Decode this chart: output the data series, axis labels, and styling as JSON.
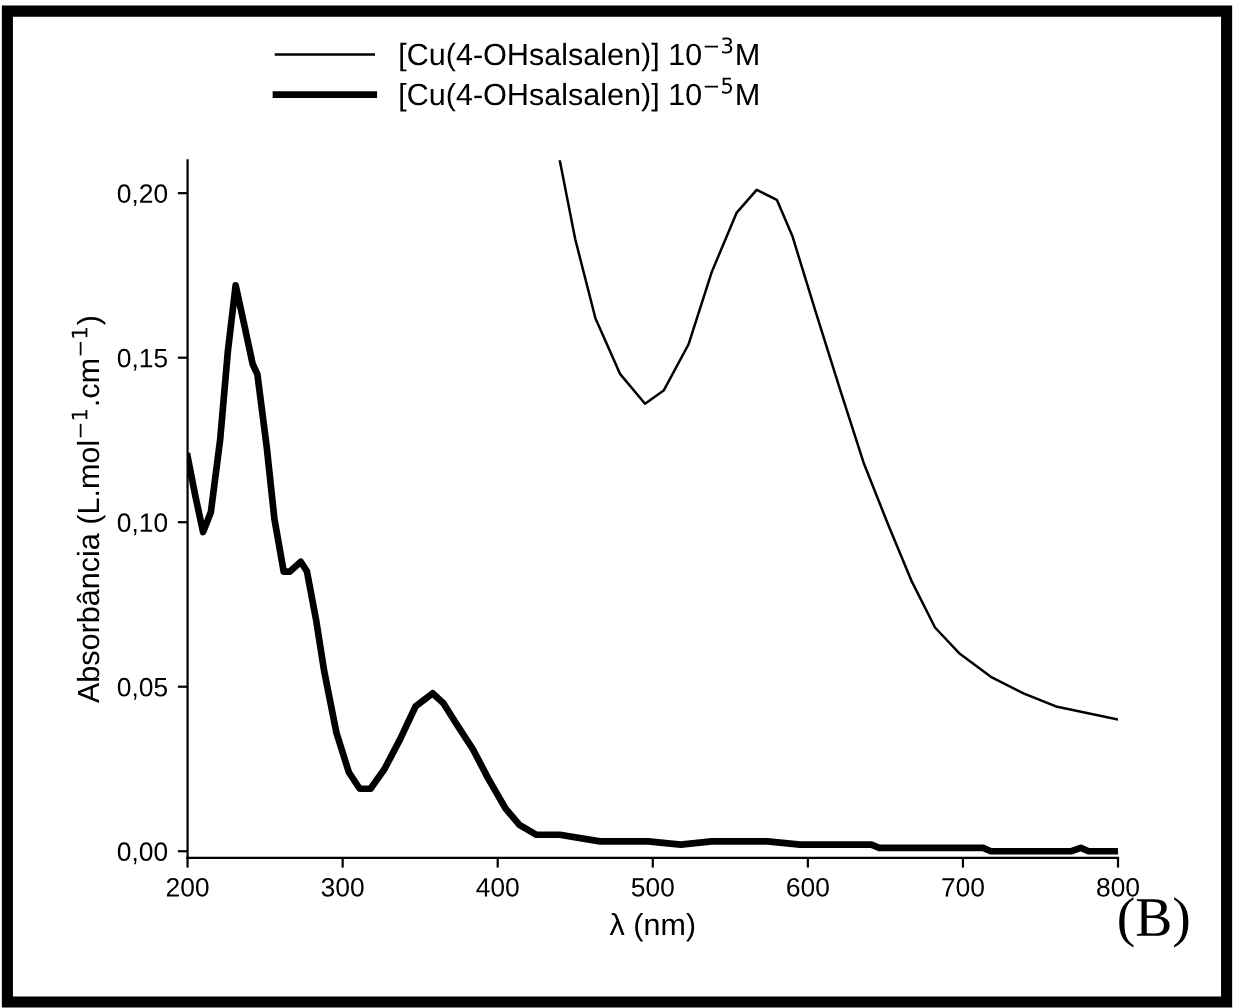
{
  "chart_data": {
    "type": "line",
    "xlabel": "λ (nm)",
    "ylabel": "Absorbância (L.mol$^{−1}$.cm$^{−1}$)",
    "annotations": [
      "(B)"
    ],
    "legend": "top",
    "grid": false,
    "marker": "none",
    "line_style": "solid",
    "xlim": [
      200,
      800
    ],
    "xticks": [
      200,
      300,
      400,
      500,
      600,
      700,
      800
    ],
    "ylim": [
      -0.002,
      0.21
    ],
    "yticks": [
      {
        "value": 0.0,
        "label": "0,00"
      },
      {
        "value": 0.05,
        "label": "0,05"
      },
      {
        "value": 0.1,
        "label": "0,10"
      },
      {
        "value": 0.15,
        "label": "0,15"
      },
      {
        "value": 0.2,
        "label": "0,20"
      }
    ],
    "series": [
      {
        "name": "[Cu(4-OHsalsalen)] 10$^{−3}$M",
        "color": "#000000",
        "x": [
          440,
          450,
          463,
          479,
          495,
          507,
          523,
          538,
          554,
          567,
          580,
          590,
          605,
          621,
          636,
          652,
          667,
          682,
          698,
          718,
          739,
          760,
          780,
          800
        ],
        "values": [
          0.21,
          0.186,
          0.162,
          0.145,
          0.136,
          0.14,
          0.154,
          0.176,
          0.194,
          0.201,
          0.198,
          0.187,
          0.164,
          0.14,
          0.118,
          0.099,
          0.082,
          0.068,
          0.06,
          0.053,
          0.048,
          0.044,
          0.042,
          0.04
        ]
      },
      {
        "name": "[Cu(4-OHsalsalen)] 10$^{−5}$M",
        "color": "#000000",
        "x": [
          200,
          205,
          210,
          215,
          221,
          226,
          231,
          237,
          242,
          245,
          251,
          256,
          262,
          266,
          273,
          277,
          283,
          288,
          296,
          304,
          311,
          318,
          327,
          337,
          347,
          358,
          365,
          373,
          384,
          394,
          405,
          414,
          425,
          440,
          466,
          497,
          518,
          538,
          574,
          595,
          641,
          646,
          713,
          718,
          770,
          776,
          781,
          800
        ],
        "values": [
          0.12,
          0.108,
          0.097,
          0.103,
          0.125,
          0.152,
          0.172,
          0.159,
          0.148,
          0.145,
          0.123,
          0.101,
          0.085,
          0.085,
          0.088,
          0.085,
          0.07,
          0.055,
          0.036,
          0.024,
          0.019,
          0.019,
          0.025,
          0.034,
          0.044,
          0.048,
          0.045,
          0.039,
          0.031,
          0.022,
          0.013,
          0.008,
          0.005,
          0.005,
          0.003,
          0.003,
          0.002,
          0.003,
          0.003,
          0.002,
          0.002,
          0.001,
          0.001,
          0.0,
          0.0,
          0.001,
          0.0,
          0.0
        ]
      }
    ]
  }
}
